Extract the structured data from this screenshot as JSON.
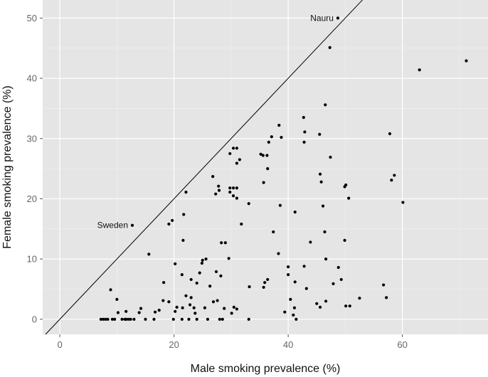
{
  "chart_data": {
    "type": "scatter",
    "xlabel": "Male smoking prevalence (%)",
    "ylabel": "Female smoking prevalence (%)",
    "xlim": [
      -3,
      75
    ],
    "ylim": [
      -2.5,
      53
    ],
    "xticks": [
      0,
      20,
      40,
      60
    ],
    "yticks": [
      0,
      10,
      20,
      30,
      40,
      50
    ],
    "grid": true,
    "reference_line": {
      "slope": 1,
      "intercept": 0
    },
    "annotations": [
      {
        "text": "Nauru",
        "x": 48.7,
        "y": 50
      },
      {
        "text": "Sweden",
        "x": 12.7,
        "y": 15.6
      }
    ],
    "points": [
      [
        48.7,
        50.0
      ],
      [
        47.3,
        45.1
      ],
      [
        63.0,
        41.4
      ],
      [
        71.2,
        42.9
      ],
      [
        46.5,
        35.6
      ],
      [
        42.7,
        33.5
      ],
      [
        38.4,
        32.2
      ],
      [
        42.9,
        31.1
      ],
      [
        45.5,
        30.7
      ],
      [
        57.8,
        30.8
      ],
      [
        37.1,
        30.3
      ],
      [
        38.8,
        30.2
      ],
      [
        42.8,
        29.4
      ],
      [
        36.6,
        29.4
      ],
      [
        30.4,
        28.4
      ],
      [
        31.0,
        28.4
      ],
      [
        29.8,
        27.5
      ],
      [
        35.2,
        27.4
      ],
      [
        36.3,
        27.2
      ],
      [
        35.6,
        27.2
      ],
      [
        47.4,
        26.9
      ],
      [
        31.5,
        26.5
      ],
      [
        31.0,
        25.9
      ],
      [
        36.4,
        25.0
      ],
      [
        45.6,
        24.1
      ],
      [
        26.8,
        23.7
      ],
      [
        58.6,
        23.9
      ],
      [
        58.1,
        23.1
      ],
      [
        35.7,
        22.7
      ],
      [
        45.8,
        22.8
      ],
      [
        49.9,
        22.0
      ],
      [
        50.1,
        22.3
      ],
      [
        27.8,
        22.1
      ],
      [
        29.8,
        21.8
      ],
      [
        30.4,
        21.8
      ],
      [
        31.0,
        21.8
      ],
      [
        27.9,
        21.4
      ],
      [
        29.8,
        21.1
      ],
      [
        22.1,
        21.1
      ],
      [
        27.3,
        20.8
      ],
      [
        30.4,
        20.5
      ],
      [
        31.0,
        20.1
      ],
      [
        50.6,
        20.1
      ],
      [
        60.1,
        19.4
      ],
      [
        33.1,
        19.2
      ],
      [
        38.6,
        18.9
      ],
      [
        46.1,
        18.8
      ],
      [
        41.2,
        17.8
      ],
      [
        21.7,
        17.4
      ],
      [
        19.7,
        16.4
      ],
      [
        12.7,
        15.6
      ],
      [
        19.1,
        15.8
      ],
      [
        31.8,
        15.8
      ],
      [
        37.4,
        14.5
      ],
      [
        46.4,
        14.5
      ],
      [
        21.6,
        13.1
      ],
      [
        49.9,
        13.1
      ],
      [
        29.0,
        12.7
      ],
      [
        43.9,
        12.8
      ],
      [
        28.3,
        12.7
      ],
      [
        38.3,
        10.9
      ],
      [
        15.6,
        10.8
      ],
      [
        29.6,
        10.1
      ],
      [
        25.6,
        10.0
      ],
      [
        46.6,
        10.0
      ],
      [
        25.0,
        9.8
      ],
      [
        20.2,
        9.2
      ],
      [
        24.9,
        9.3
      ],
      [
        40.0,
        8.7
      ],
      [
        48.8,
        8.6
      ],
      [
        42.8,
        8.8
      ],
      [
        24.5,
        7.7
      ],
      [
        21.4,
        7.4
      ],
      [
        27.4,
        7.9
      ],
      [
        40.0,
        7.4
      ],
      [
        28.2,
        7.2
      ],
      [
        23.0,
        6.6
      ],
      [
        36.4,
        6.6
      ],
      [
        49.3,
        6.6
      ],
      [
        35.9,
        6.1
      ],
      [
        24.0,
        6.0
      ],
      [
        41.2,
        6.2
      ],
      [
        47.9,
        5.9
      ],
      [
        18.2,
        6.1
      ],
      [
        56.7,
        5.7
      ],
      [
        26.3,
        5.5
      ],
      [
        35.7,
        5.3
      ],
      [
        33.2,
        5.4
      ],
      [
        43.2,
        5.1
      ],
      [
        8.9,
        4.9
      ],
      [
        22.1,
        3.9
      ],
      [
        52.5,
        3.5
      ],
      [
        57.2,
        3.6
      ],
      [
        23.0,
        3.6
      ],
      [
        10.0,
        3.3
      ],
      [
        40.4,
        3.3
      ],
      [
        27.6,
        3.1
      ],
      [
        46.6,
        3.0
      ],
      [
        26.9,
        2.9
      ],
      [
        19.1,
        2.9
      ],
      [
        18.1,
        3.1
      ],
      [
        45.0,
        2.6
      ],
      [
        22.8,
        2.4
      ],
      [
        41.1,
        1.9
      ],
      [
        50.1,
        2.2
      ],
      [
        50.8,
        2.2
      ],
      [
        30.5,
        2.0
      ],
      [
        28.8,
        1.8
      ],
      [
        20.5,
        2.0
      ],
      [
        23.5,
        1.9
      ],
      [
        25.4,
        1.9
      ],
      [
        45.6,
        2.0
      ],
      [
        21.5,
        1.9
      ],
      [
        14.2,
        1.8
      ],
      [
        31.0,
        1.7
      ],
      [
        17.4,
        1.5
      ],
      [
        11.6,
        1.3
      ],
      [
        20.2,
        1.3
      ],
      [
        39.4,
        1.2
      ],
      [
        10.2,
        1.1
      ],
      [
        16.7,
        1.2
      ],
      [
        13.9,
        1.1
      ],
      [
        23.7,
        1.0
      ],
      [
        30.1,
        1.0
      ],
      [
        40.9,
        0.7
      ],
      [
        8.4,
        0.0
      ],
      [
        9.2,
        0.0
      ],
      [
        9.6,
        0.0
      ],
      [
        10.9,
        0.0
      ],
      [
        11.6,
        0.0
      ],
      [
        12.4,
        0.0
      ],
      [
        13.0,
        0.0
      ],
      [
        15.0,
        0.0
      ],
      [
        16.5,
        0.0
      ],
      [
        7.2,
        0.0
      ],
      [
        7.6,
        0.0
      ],
      [
        8.0,
        0.0
      ],
      [
        19.9,
        0.0
      ],
      [
        21.4,
        0.0
      ],
      [
        22.6,
        0.0
      ],
      [
        24.0,
        0.0
      ],
      [
        25.9,
        0.0
      ],
      [
        28.0,
        0.0
      ],
      [
        28.5,
        0.0
      ],
      [
        33.1,
        0.0
      ],
      [
        41.4,
        0.0
      ],
      [
        12.0,
        0.0
      ],
      [
        11.4,
        0.0
      ]
    ]
  }
}
